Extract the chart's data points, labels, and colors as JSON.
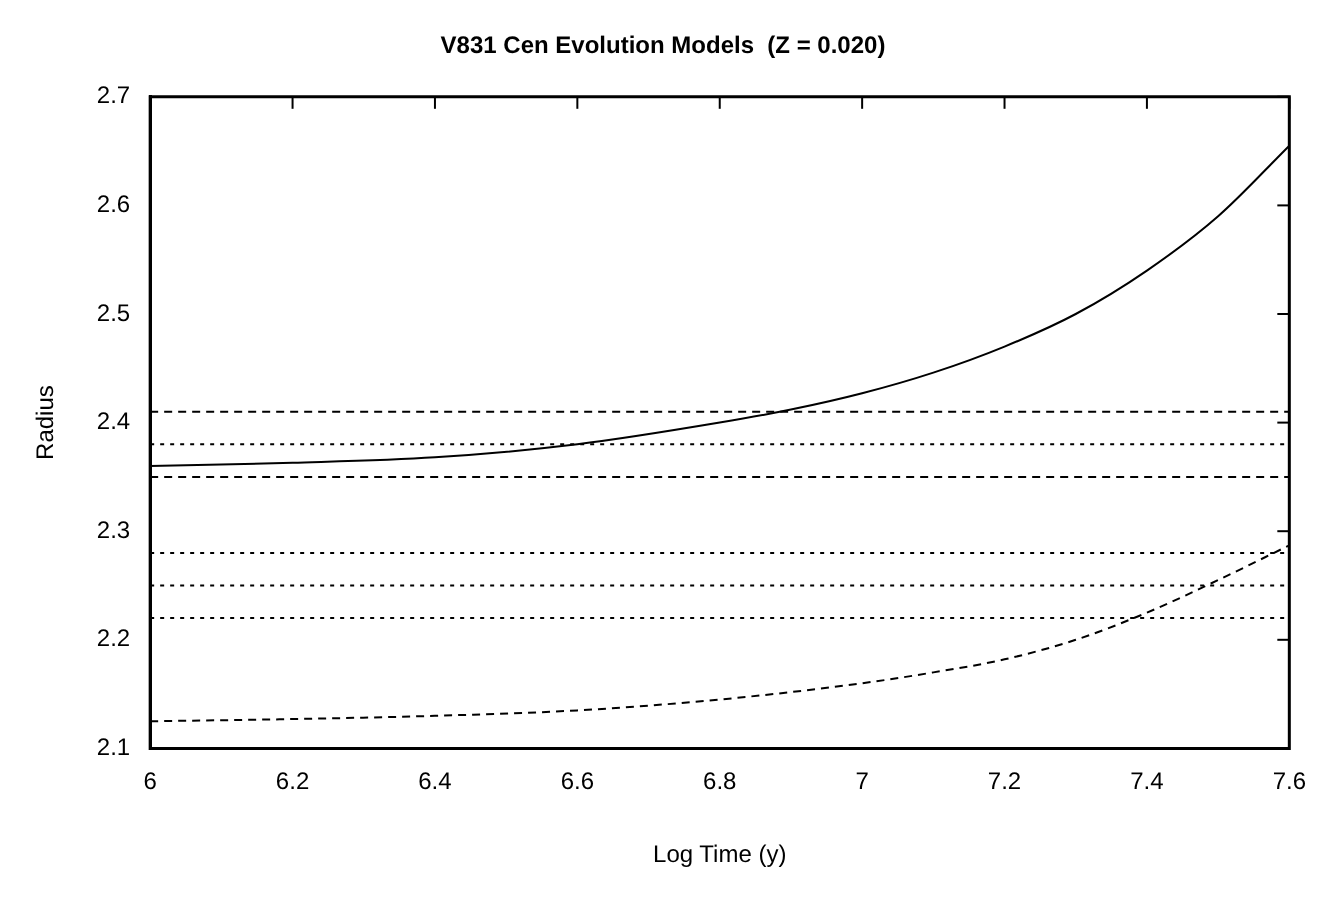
{
  "chart_data": {
    "type": "line",
    "title": "V831 Cen Evolution Models  (Z = 0.020)",
    "xlabel": "Log Time (y)",
    "ylabel": "Radius",
    "xlim": [
      6,
      7.6
    ],
    "xticks": [
      6,
      6.2,
      6.4,
      6.6,
      6.8,
      7,
      7.2,
      7.4,
      7.6
    ],
    "ylim": [
      2.1,
      2.7
    ],
    "yticks": [
      2.1,
      2.2,
      2.3,
      2.4,
      2.5,
      2.6,
      2.7
    ],
    "grid": false,
    "legend": false,
    "marker": "none",
    "series": [
      {
        "color": "#000000",
        "line_style": "solid",
        "x": [
          6,
          6.2,
          6.4,
          6.6,
          6.8,
          6.9,
          7,
          7.1,
          7.2,
          7.3,
          7.4,
          7.5,
          7.6
        ],
        "values": [
          2.36,
          2.363,
          2.368,
          2.38,
          2.4,
          2.412,
          2.427,
          2.446,
          2.47,
          2.5,
          2.54,
          2.59,
          2.655
        ]
      },
      {
        "color": "#000000",
        "line_style": "dashed",
        "x": [
          6,
          6.2,
          6.4,
          6.6,
          6.8,
          7,
          7.1,
          7.2,
          7.3,
          7.4,
          7.5,
          7.6
        ],
        "values": [
          2.125,
          2.127,
          2.13,
          2.135,
          2.145,
          2.16,
          2.17,
          2.182,
          2.2,
          2.225,
          2.255,
          2.287
        ]
      }
    ],
    "ref_lines": [
      {
        "axis": "y",
        "value": 2.41,
        "line_style": "dashed",
        "color": "#000000"
      },
      {
        "axis": "y",
        "value": 2.38,
        "line_style": "dotted",
        "color": "#000000"
      },
      {
        "axis": "y",
        "value": 2.35,
        "line_style": "dashed",
        "color": "#000000"
      },
      {
        "axis": "y",
        "value": 2.28,
        "line_style": "dotted",
        "color": "#000000"
      },
      {
        "axis": "y",
        "value": 2.25,
        "line_style": "dotted",
        "color": "#000000"
      },
      {
        "axis": "y",
        "value": 2.22,
        "line_style": "dotted",
        "color": "#000000"
      }
    ]
  }
}
